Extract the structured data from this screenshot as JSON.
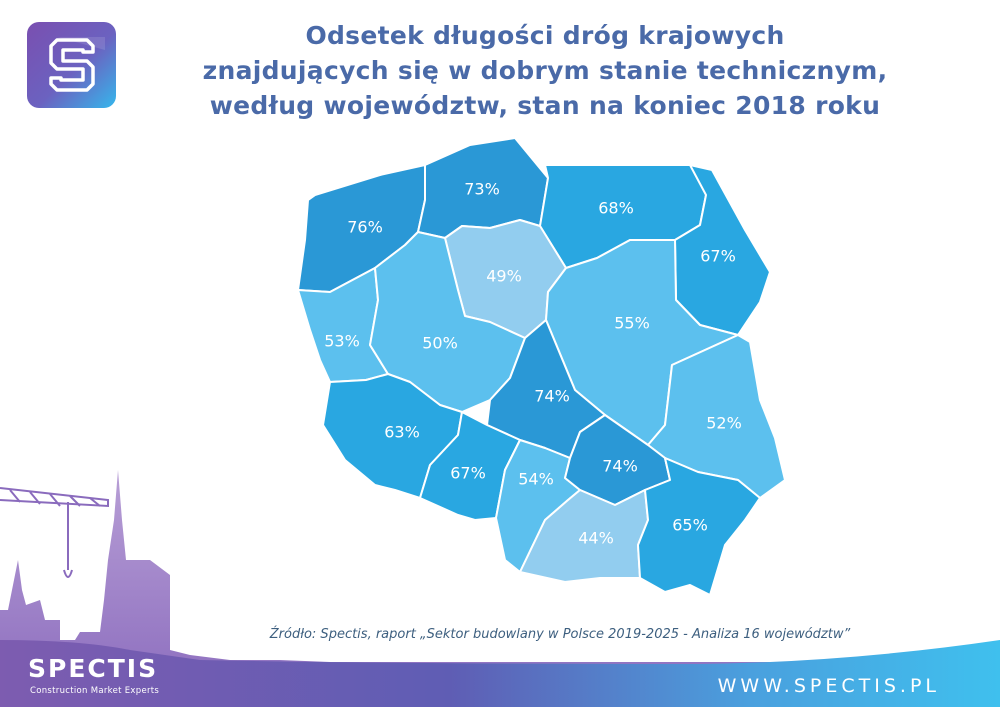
{
  "title": {
    "line1": "Odsetek długości dróg krajowych",
    "line2": "znajdujących się w dobrym stanie technicznym,",
    "line3": "według województw, stan na koniec 2018 roku"
  },
  "regions": [
    {
      "label": "76%",
      "value": 76,
      "color": "#2a98d6"
    },
    {
      "label": "73%",
      "value": 73,
      "color": "#2a98d6"
    },
    {
      "label": "68%",
      "value": 68,
      "color": "#29a7e1"
    },
    {
      "label": "67%",
      "value": 67,
      "color": "#29a7e1"
    },
    {
      "label": "49%",
      "value": 49,
      "color": "#92cdef"
    },
    {
      "label": "53%",
      "value": 53,
      "color": "#5cc0ee"
    },
    {
      "label": "50%",
      "value": 50,
      "color": "#5cc0ee"
    },
    {
      "label": "55%",
      "value": 55,
      "color": "#5cc0ee"
    },
    {
      "label": "74%",
      "value": 74,
      "color": "#2a98d6"
    },
    {
      "label": "52%",
      "value": 52,
      "color": "#5cc0ee"
    },
    {
      "label": "63%",
      "value": 63,
      "color": "#29a7e1"
    },
    {
      "label": "67%",
      "value": 67,
      "color": "#29a7e1"
    },
    {
      "label": "54%",
      "value": 54,
      "color": "#5cc0ee"
    },
    {
      "label": "74%",
      "value": 74,
      "color": "#2a98d6"
    },
    {
      "label": "44%",
      "value": 44,
      "color": "#92cdef"
    },
    {
      "label": "65%",
      "value": 65,
      "color": "#29a7e1"
    }
  ],
  "source": "Źródło: Spectis, raport „Sektor budowlany w Polsce 2019-2025 - Analiza 16 województw”",
  "brand": {
    "name": "SPECTIS",
    "tagline": "Construction Market Experts",
    "url": "WWW.SPECTIS.PL"
  },
  "colors": {
    "title": "#4a6aa8",
    "border": "#ffffff",
    "footer_gradient": [
      "#7d5cb0",
      "#5a5fb4",
      "#3fb8ea"
    ]
  }
}
